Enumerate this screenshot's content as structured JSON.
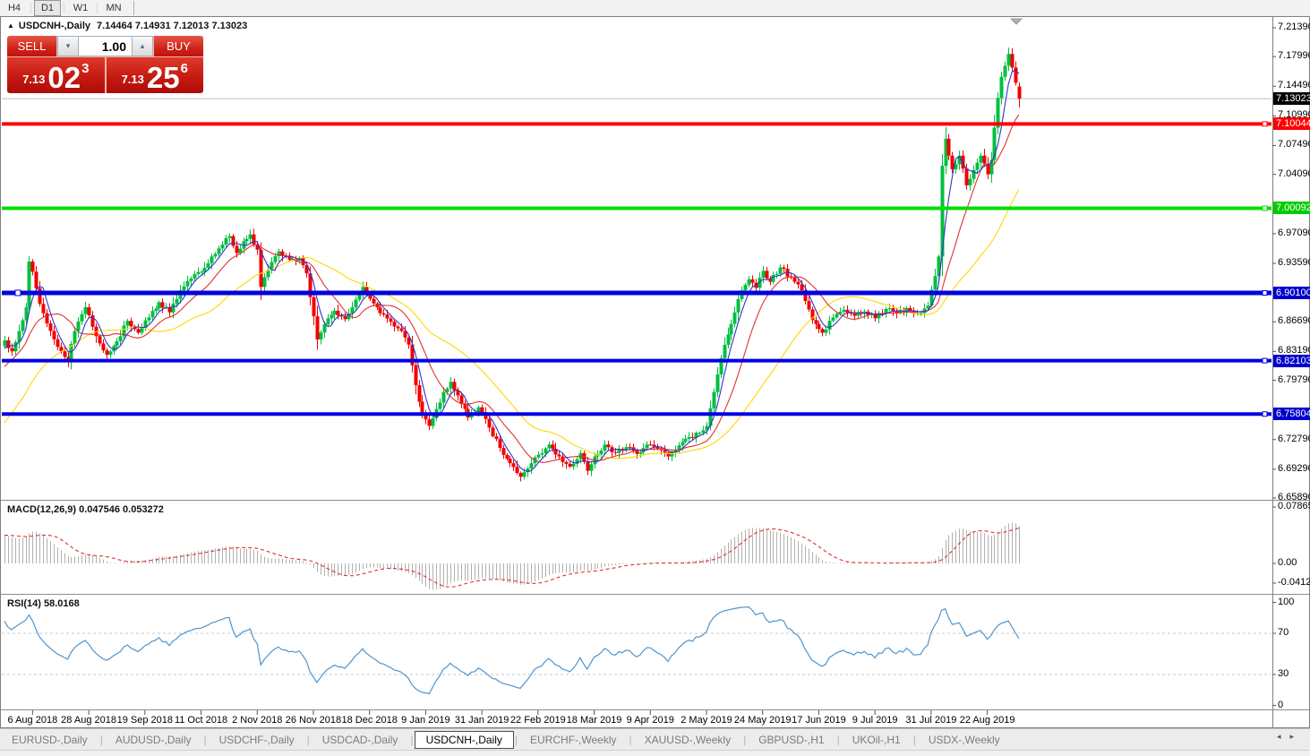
{
  "toolbar": {
    "timeframes": [
      {
        "label": "H4",
        "active": false
      },
      {
        "label": "D1",
        "active": true
      },
      {
        "label": "W1",
        "active": false
      },
      {
        "label": "MN",
        "active": false
      }
    ]
  },
  "header": {
    "arrow": "▲",
    "title": "USDCNH-,Daily",
    "ohlc": "7.14464 7.14931 7.12013 7.13023"
  },
  "quote_panel": {
    "sell_label": "SELL",
    "buy_label": "BUY",
    "volume": "1.00",
    "spin_down": "▾",
    "spin_up": "▴",
    "sell_small": "7.13",
    "sell_big": "02",
    "sell_sup": "3",
    "buy_small": "7.13",
    "buy_big": "25",
    "buy_sup": "6"
  },
  "indicators": {
    "macd": {
      "label": "MACD(12,26,9)",
      "values": "0.047546 0.053272"
    },
    "rsi": {
      "label": "RSI(14)",
      "values": "58.0168"
    }
  },
  "tabs": {
    "items": [
      {
        "label": "EURUSD-,Daily",
        "active": false
      },
      {
        "label": "AUDUSD-,Daily",
        "active": false
      },
      {
        "label": "USDCHF-,Daily",
        "active": false
      },
      {
        "label": "USDCAD-,Daily",
        "active": false
      },
      {
        "label": "USDCNH-,Daily",
        "active": true
      },
      {
        "label": "EURCHF-,Weekly",
        "active": false
      },
      {
        "label": "XAUUSD-,Weekly",
        "active": false
      },
      {
        "label": "GBPUSD-,H1",
        "active": false
      },
      {
        "label": "UKOil-,H1",
        "active": false
      },
      {
        "label": "USDX-,Weekly",
        "active": false
      }
    ],
    "scroll_left": "◂",
    "scroll_right": "▸"
  },
  "chart_data": {
    "type": "candlestick",
    "symbol": "USDCNH",
    "timeframe": "Daily",
    "bars": 290,
    "ylim": [
      6.6589,
      7.2139
    ],
    "current_price": 7.13023,
    "price_ticks": [
      "7.21390",
      "7.17990",
      "7.14490",
      "7.10990",
      "7.07490",
      "7.04090",
      "6.97090",
      "6.93590",
      "6.86690",
      "6.83190",
      "6.79790",
      "6.72790",
      "6.69290",
      "6.65890"
    ],
    "price_badges": [
      {
        "text": "7.13023",
        "bg": "#000000",
        "fg": "#ffffff"
      },
      {
        "text": "7.10044",
        "bg": "#fe0000",
        "fg": "#ffffff"
      },
      {
        "text": "7.00092",
        "bg": "#00cc00",
        "fg": "#ffffff"
      },
      {
        "text": "6.90100",
        "bg": "#0000cc",
        "fg": "#ffffff"
      },
      {
        "text": "6.82103",
        "bg": "#0000cc",
        "fg": "#ffffff"
      },
      {
        "text": "6.75804",
        "bg": "#0000cc",
        "fg": "#ffffff"
      }
    ],
    "levels": [
      {
        "price": 7.10044,
        "color": "#ff0000",
        "width": 4
      },
      {
        "price": 7.00092,
        "color": "#00dd00",
        "width": 4
      },
      {
        "price": 6.901,
        "color": "#0000e0",
        "width": 5
      },
      {
        "price": 6.82103,
        "color": "#0000e0",
        "width": 4
      },
      {
        "price": 6.75804,
        "color": "#0000e0",
        "width": 4
      }
    ],
    "date_tick_labels": [
      "6 Aug 2018",
      "28 Aug 2018",
      "19 Sep 2018",
      "11 Oct 2018",
      "2 Nov 2018",
      "26 Nov 2018",
      "18 Dec 2018",
      "9 Jan 2019",
      "31 Jan 2019",
      "22 Feb 2019",
      "18 Mar 2019",
      "9 Apr 2019",
      "2 May 2019",
      "24 May 2019",
      "17 Jun 2019",
      "9 Jul 2019",
      "31 Jul 2019",
      "22 Aug 2019"
    ],
    "date_tick_first_bar": 8,
    "date_tick_step": 16,
    "ma_periods": {
      "blue": 5,
      "red": 13,
      "yellow": 34
    },
    "macd": {
      "fast": 12,
      "slow": 26,
      "signal": 9,
      "axis_values": [
        0.078658,
        0,
        -0.041287
      ],
      "axis_labels": [
        "0.078658",
        "0.00",
        "-0.041287"
      ]
    },
    "rsi": {
      "period": 14,
      "levels": [
        70,
        30
      ],
      "axis_values": [
        100,
        70,
        30,
        0
      ],
      "axis_labels": [
        "100",
        "70",
        "30",
        "0"
      ]
    },
    "last_bar": {
      "o": 7.14464,
      "h": 7.14931,
      "l": 7.12013,
      "c": 7.13023
    },
    "prehistory_closes": [
      6.6,
      6.606,
      6.615,
      6.61,
      6.622,
      6.633,
      6.628,
      6.641,
      6.653,
      6.648,
      6.66,
      6.672,
      6.667,
      6.68,
      6.692,
      6.687,
      6.7,
      6.713,
      6.708,
      6.72,
      6.733,
      6.728,
      6.74,
      6.752,
      6.747,
      6.76,
      6.772,
      6.767,
      6.779,
      6.79,
      6.785,
      6.797,
      6.808,
      6.803,
      6.815,
      6.825,
      6.82,
      6.832,
      6.843,
      6.838
    ],
    "close_anchors": [
      [
        0,
        6.845
      ],
      [
        2,
        6.832
      ],
      [
        4,
        6.856
      ],
      [
        6,
        6.884
      ],
      [
        7,
        6.938
      ],
      [
        8,
        6.926
      ],
      [
        10,
        6.888
      ],
      [
        13,
        6.856
      ],
      [
        16,
        6.832
      ],
      [
        18,
        6.82
      ],
      [
        20,
        6.856
      ],
      [
        23,
        6.884
      ],
      [
        26,
        6.85
      ],
      [
        29,
        6.828
      ],
      [
        32,
        6.844
      ],
      [
        35,
        6.868
      ],
      [
        38,
        6.854
      ],
      [
        41,
        6.872
      ],
      [
        44,
        6.89
      ],
      [
        47,
        6.878
      ],
      [
        50,
        6.904
      ],
      [
        53,
        6.918
      ],
      [
        56,
        6.926
      ],
      [
        59,
        6.944
      ],
      [
        62,
        6.958
      ],
      [
        64,
        6.968
      ],
      [
        66,
        6.948
      ],
      [
        68,
        6.962
      ],
      [
        70,
        6.97
      ],
      [
        72,
        6.952
      ],
      [
        73,
        6.908
      ],
      [
        75,
        6.928
      ],
      [
        78,
        6.95
      ],
      [
        81,
        6.94
      ],
      [
        84,
        6.942
      ],
      [
        86,
        6.924
      ],
      [
        87,
        6.896
      ],
      [
        89,
        6.846
      ],
      [
        91,
        6.864
      ],
      [
        94,
        6.88
      ],
      [
        97,
        6.87
      ],
      [
        100,
        6.893
      ],
      [
        102,
        6.908
      ],
      [
        104,
        6.894
      ],
      [
        107,
        6.877
      ],
      [
        110,
        6.867
      ],
      [
        113,
        6.856
      ],
      [
        115,
        6.84
      ],
      [
        117,
        6.792
      ],
      [
        119,
        6.758
      ],
      [
        121,
        6.744
      ],
      [
        123,
        6.764
      ],
      [
        125,
        6.784
      ],
      [
        127,
        6.796
      ],
      [
        129,
        6.78
      ],
      [
        132,
        6.754
      ],
      [
        135,
        6.766
      ],
      [
        138,
        6.742
      ],
      [
        141,
        6.718
      ],
      [
        144,
        6.7
      ],
      [
        147,
        6.684
      ],
      [
        150,
        6.7
      ],
      [
        152,
        6.71
      ],
      [
        155,
        6.722
      ],
      [
        158,
        6.708
      ],
      [
        161,
        6.696
      ],
      [
        164,
        6.712
      ],
      [
        166,
        6.691
      ],
      [
        168,
        6.708
      ],
      [
        171,
        6.722
      ],
      [
        174,
        6.712
      ],
      [
        177,
        6.719
      ],
      [
        180,
        6.711
      ],
      [
        183,
        6.722
      ],
      [
        186,
        6.717
      ],
      [
        189,
        6.708
      ],
      [
        192,
        6.721
      ],
      [
        195,
        6.731
      ],
      [
        198,
        6.736
      ],
      [
        200,
        6.744
      ],
      [
        202,
        6.784
      ],
      [
        204,
        6.824
      ],
      [
        206,
        6.852
      ],
      [
        208,
        6.878
      ],
      [
        210,
        6.904
      ],
      [
        212,
        6.917
      ],
      [
        214,
        6.907
      ],
      [
        216,
        6.927
      ],
      [
        218,
        6.914
      ],
      [
        221,
        6.931
      ],
      [
        224,
        6.919
      ],
      [
        227,
        6.904
      ],
      [
        230,
        6.869
      ],
      [
        233,
        6.854
      ],
      [
        236,
        6.872
      ],
      [
        239,
        6.881
      ],
      [
        242,
        6.874
      ],
      [
        245,
        6.879
      ],
      [
        248,
        6.871
      ],
      [
        251,
        6.882
      ],
      [
        254,
        6.877
      ],
      [
        257,
        6.883
      ],
      [
        260,
        6.877
      ],
      [
        263,
        6.886
      ],
      [
        265,
        6.921
      ],
      [
        266,
        6.944
      ],
      [
        267,
        7.051
      ],
      [
        268,
        7.083
      ],
      [
        270,
        7.047
      ],
      [
        272,
        7.063
      ],
      [
        274,
        7.028
      ],
      [
        276,
        7.046
      ],
      [
        278,
        7.063
      ],
      [
        280,
        7.041
      ],
      [
        281,
        7.058
      ],
      [
        282,
        7.096
      ],
      [
        283,
        7.131
      ],
      [
        284,
        7.156
      ],
      [
        285,
        7.169
      ],
      [
        286,
        7.183
      ],
      [
        287,
        7.167
      ],
      [
        288,
        7.149
      ],
      [
        289,
        7.13023
      ]
    ],
    "colors": {
      "up": "#00bf40",
      "down": "#f20000",
      "ma_blue": "#3333cc",
      "ma_red": "#e03232",
      "ma_yellow": "#ffd700",
      "macd_hist": "#b0b0b0",
      "macd_signal": "#e03030",
      "rsi": "#4f94cd",
      "dash_level": "#c9c9c9",
      "current_price_line": "#bfbfbf",
      "marker": "#b0b0b0"
    }
  }
}
